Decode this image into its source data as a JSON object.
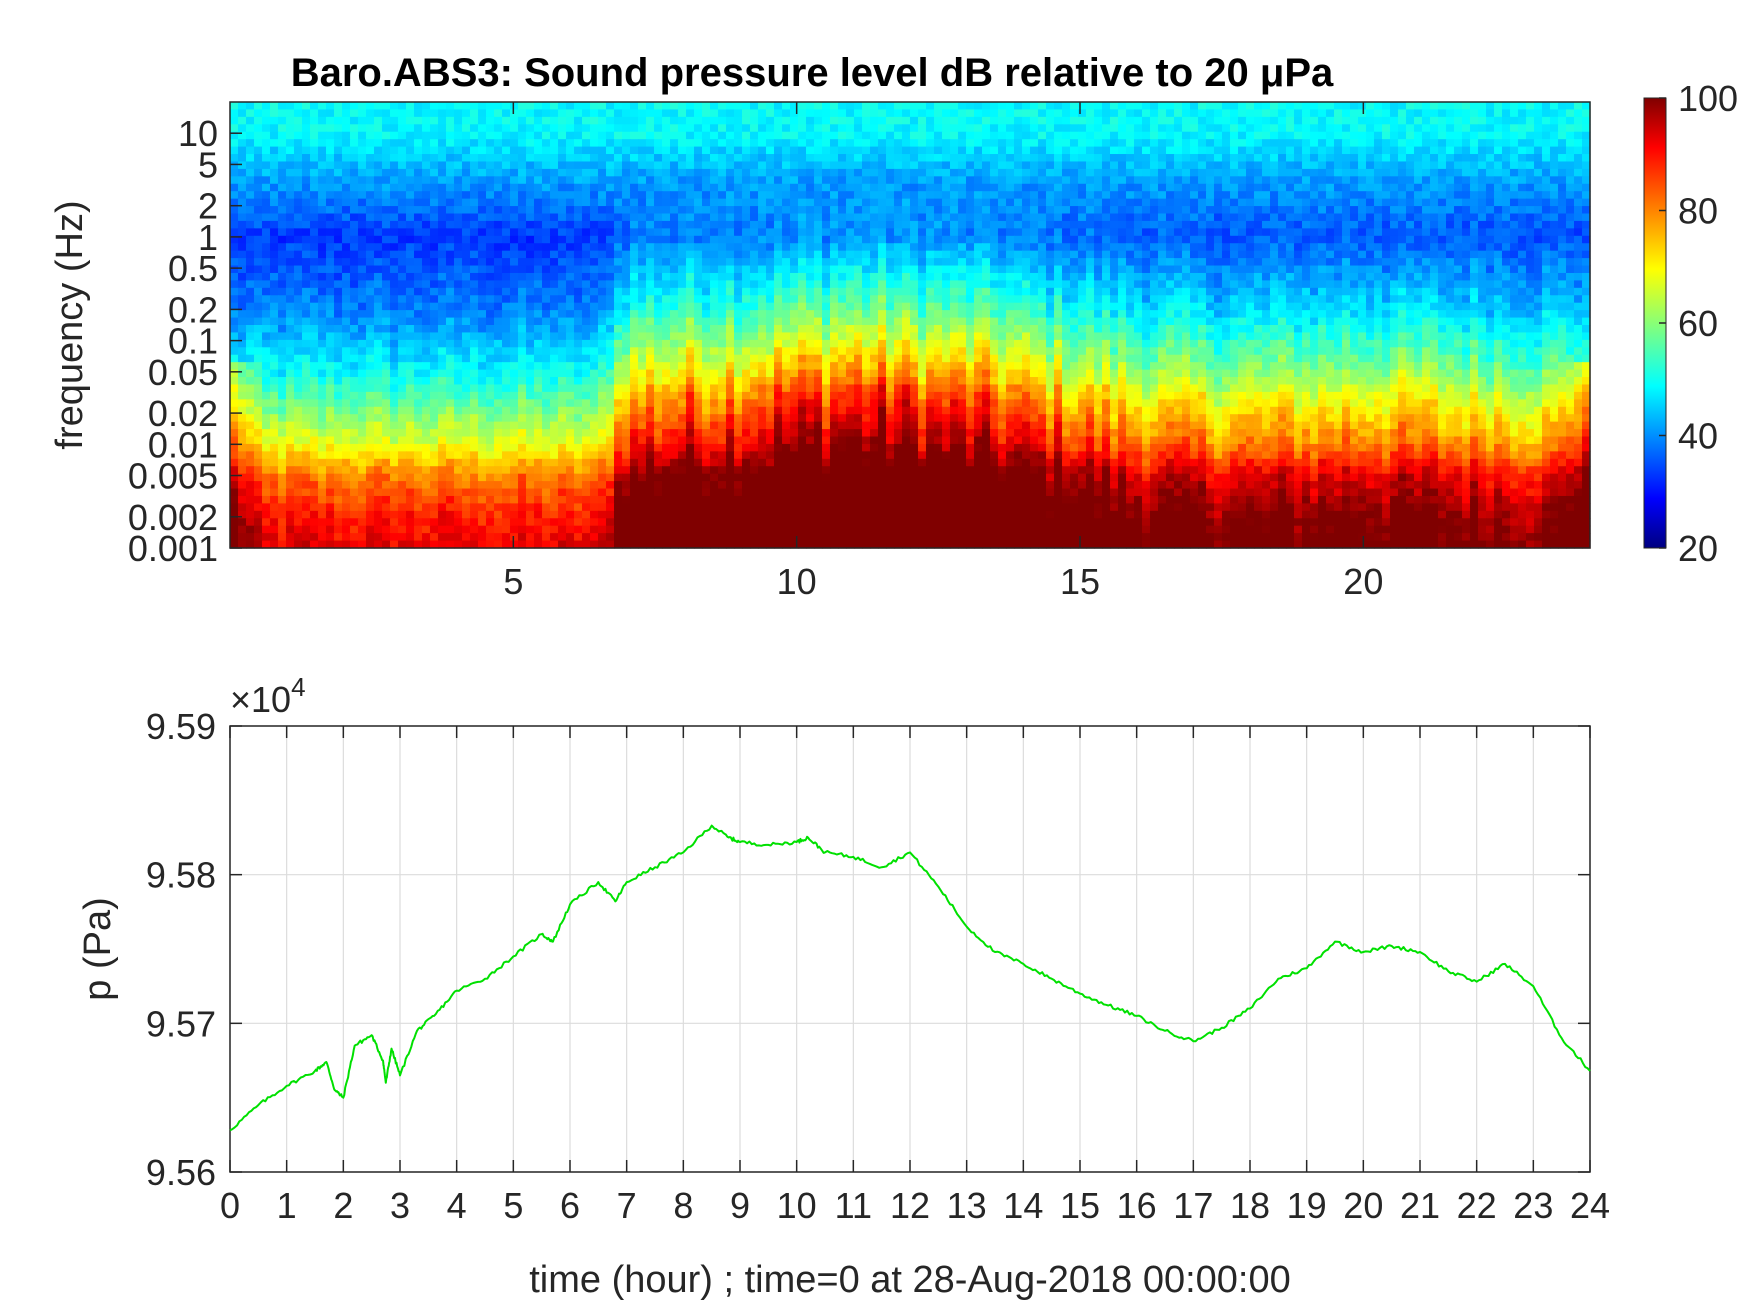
{
  "chart_data": [
    {
      "type": "heatmap",
      "title": "Baro.ABS3: Sound pressure level dB relative to 20 μPa",
      "xlabel": "",
      "ylabel": "frequency (Hz)",
      "xlim": [
        0,
        24
      ],
      "x_ticks": [
        5,
        10,
        15,
        20
      ],
      "x_tick_labels": [
        "5",
        "10",
        "15",
        "20"
      ],
      "y_scale": "log",
      "ylim": [
        0.001,
        20
      ],
      "y_ticks": [
        0.001,
        0.002,
        0.005,
        0.01,
        0.02,
        0.05,
        0.1,
        0.2,
        0.5,
        1,
        2,
        5,
        10
      ],
      "y_tick_labels": [
        "0.001",
        "0.002",
        "0.005",
        "0.01",
        "0.02",
        "0.05",
        "0.1",
        "0.2",
        "0.5",
        "1",
        "2",
        "5",
        "10"
      ],
      "colormap": "jet",
      "colorbar": {
        "range": [
          20,
          100
        ],
        "ticks": [
          20,
          40,
          60,
          80,
          100
        ],
        "tick_labels": [
          "20",
          "40",
          "60",
          "80",
          "100"
        ]
      },
      "band_profile": [
        {
          "frequency_hz": 10,
          "level_db": 50
        },
        {
          "frequency_hz": 5,
          "level_db": 45
        },
        {
          "frequency_hz": 1,
          "level_db": 34
        },
        {
          "frequency_hz": 0.2,
          "level_db": 40
        },
        {
          "frequency_hz": 0.05,
          "level_db": 50
        },
        {
          "frequency_hz": 0.01,
          "level_db": 68
        },
        {
          "frequency_hz": 0.005,
          "level_db": 80
        },
        {
          "frequency_hz": 0.002,
          "level_db": 88
        },
        {
          "frequency_hz": 0.001,
          "level_db": 92
        }
      ],
      "activity_by_hour": [
        {
          "time_hour": 0,
          "activity": 0.3
        },
        {
          "time_hour": 6.5,
          "activity": 0.3
        },
        {
          "time_hour": 7,
          "activity": 0.75
        },
        {
          "time_hour": 11,
          "activity": 1.0
        },
        {
          "time_hour": 13,
          "activity": 0.9
        },
        {
          "time_hour": 16,
          "activity": 0.6
        },
        {
          "time_hour": 18,
          "activity": 0.55
        },
        {
          "time_hour": 20,
          "activity": 0.6
        },
        {
          "time_hour": 24,
          "activity": 0.5
        }
      ]
    },
    {
      "type": "line",
      "title": "",
      "xlabel": "time (hour) ; time=0 at 28-Aug-2018 00:00:00",
      "ylabel": "p (Pa)",
      "y_exponent_label": "×10",
      "y_exponent_power": "4",
      "xlim": [
        0,
        24
      ],
      "ylim": [
        95600,
        95900
      ],
      "x_ticks": [
        0,
        1,
        2,
        3,
        4,
        5,
        6,
        7,
        8,
        9,
        10,
        11,
        12,
        13,
        14,
        15,
        16,
        17,
        18,
        19,
        20,
        21,
        22,
        23,
        24
      ],
      "x_tick_labels": [
        "0",
        "1",
        "2",
        "3",
        "4",
        "5",
        "6",
        "7",
        "8",
        "9",
        "10",
        "11",
        "12",
        "13",
        "14",
        "15",
        "16",
        "17",
        "18",
        "19",
        "20",
        "21",
        "22",
        "23",
        "24"
      ],
      "y_ticks": [
        95600,
        95700,
        95800,
        95900
      ],
      "y_tick_labels": [
        "9.56",
        "9.57",
        "9.58",
        "9.59"
      ],
      "grid": true,
      "series": [
        {
          "color": "#00e000",
          "points": [
            [
              0,
              95628
            ],
            [
              0.5,
              95645
            ],
            [
              1,
              95658
            ],
            [
              1.5,
              95668
            ],
            [
              1.7,
              95674
            ],
            [
              1.85,
              95655
            ],
            [
              2.0,
              95650
            ],
            [
              2.2,
              95685
            ],
            [
              2.5,
              95692
            ],
            [
              2.7,
              95675
            ],
            [
              2.75,
              95660
            ],
            [
              2.85,
              95683
            ],
            [
              3.0,
              95665
            ],
            [
              3.3,
              95695
            ],
            [
              3.6,
              95705
            ],
            [
              4.0,
              95722
            ],
            [
              4.5,
              95730
            ],
            [
              5.0,
              95745
            ],
            [
              5.5,
              95760
            ],
            [
              5.7,
              95755
            ],
            [
              6.0,
              95780
            ],
            [
              6.5,
              95795
            ],
            [
              6.8,
              95782
            ],
            [
              7.0,
              95795
            ],
            [
              7.5,
              95805
            ],
            [
              8.0,
              95815
            ],
            [
              8.5,
              95833
            ],
            [
              8.8,
              95825
            ],
            [
              9.0,
              95822
            ],
            [
              9.5,
              95820
            ],
            [
              10.0,
              95822
            ],
            [
              10.2,
              95825
            ],
            [
              10.5,
              95815
            ],
            [
              11.0,
              95812
            ],
            [
              11.5,
              95805
            ],
            [
              12.0,
              95815
            ],
            [
              12.5,
              95792
            ],
            [
              13.0,
              95765
            ],
            [
              13.5,
              95748
            ],
            [
              14.0,
              95740
            ],
            [
              14.5,
              95730
            ],
            [
              15.0,
              95720
            ],
            [
              15.5,
              95712
            ],
            [
              16.0,
              95705
            ],
            [
              16.5,
              95695
            ],
            [
              17.0,
              95688
            ],
            [
              17.5,
              95697
            ],
            [
              18.0,
              95710
            ],
            [
              18.5,
              95730
            ],
            [
              19.0,
              95737
            ],
            [
              19.5,
              95755
            ],
            [
              20.0,
              95748
            ],
            [
              20.5,
              95752
            ],
            [
              21.0,
              95748
            ],
            [
              21.5,
              95735
            ],
            [
              22.0,
              95728
            ],
            [
              22.5,
              95740
            ],
            [
              23.0,
              95725
            ],
            [
              23.5,
              95690
            ],
            [
              24.0,
              95668
            ]
          ]
        }
      ]
    }
  ]
}
